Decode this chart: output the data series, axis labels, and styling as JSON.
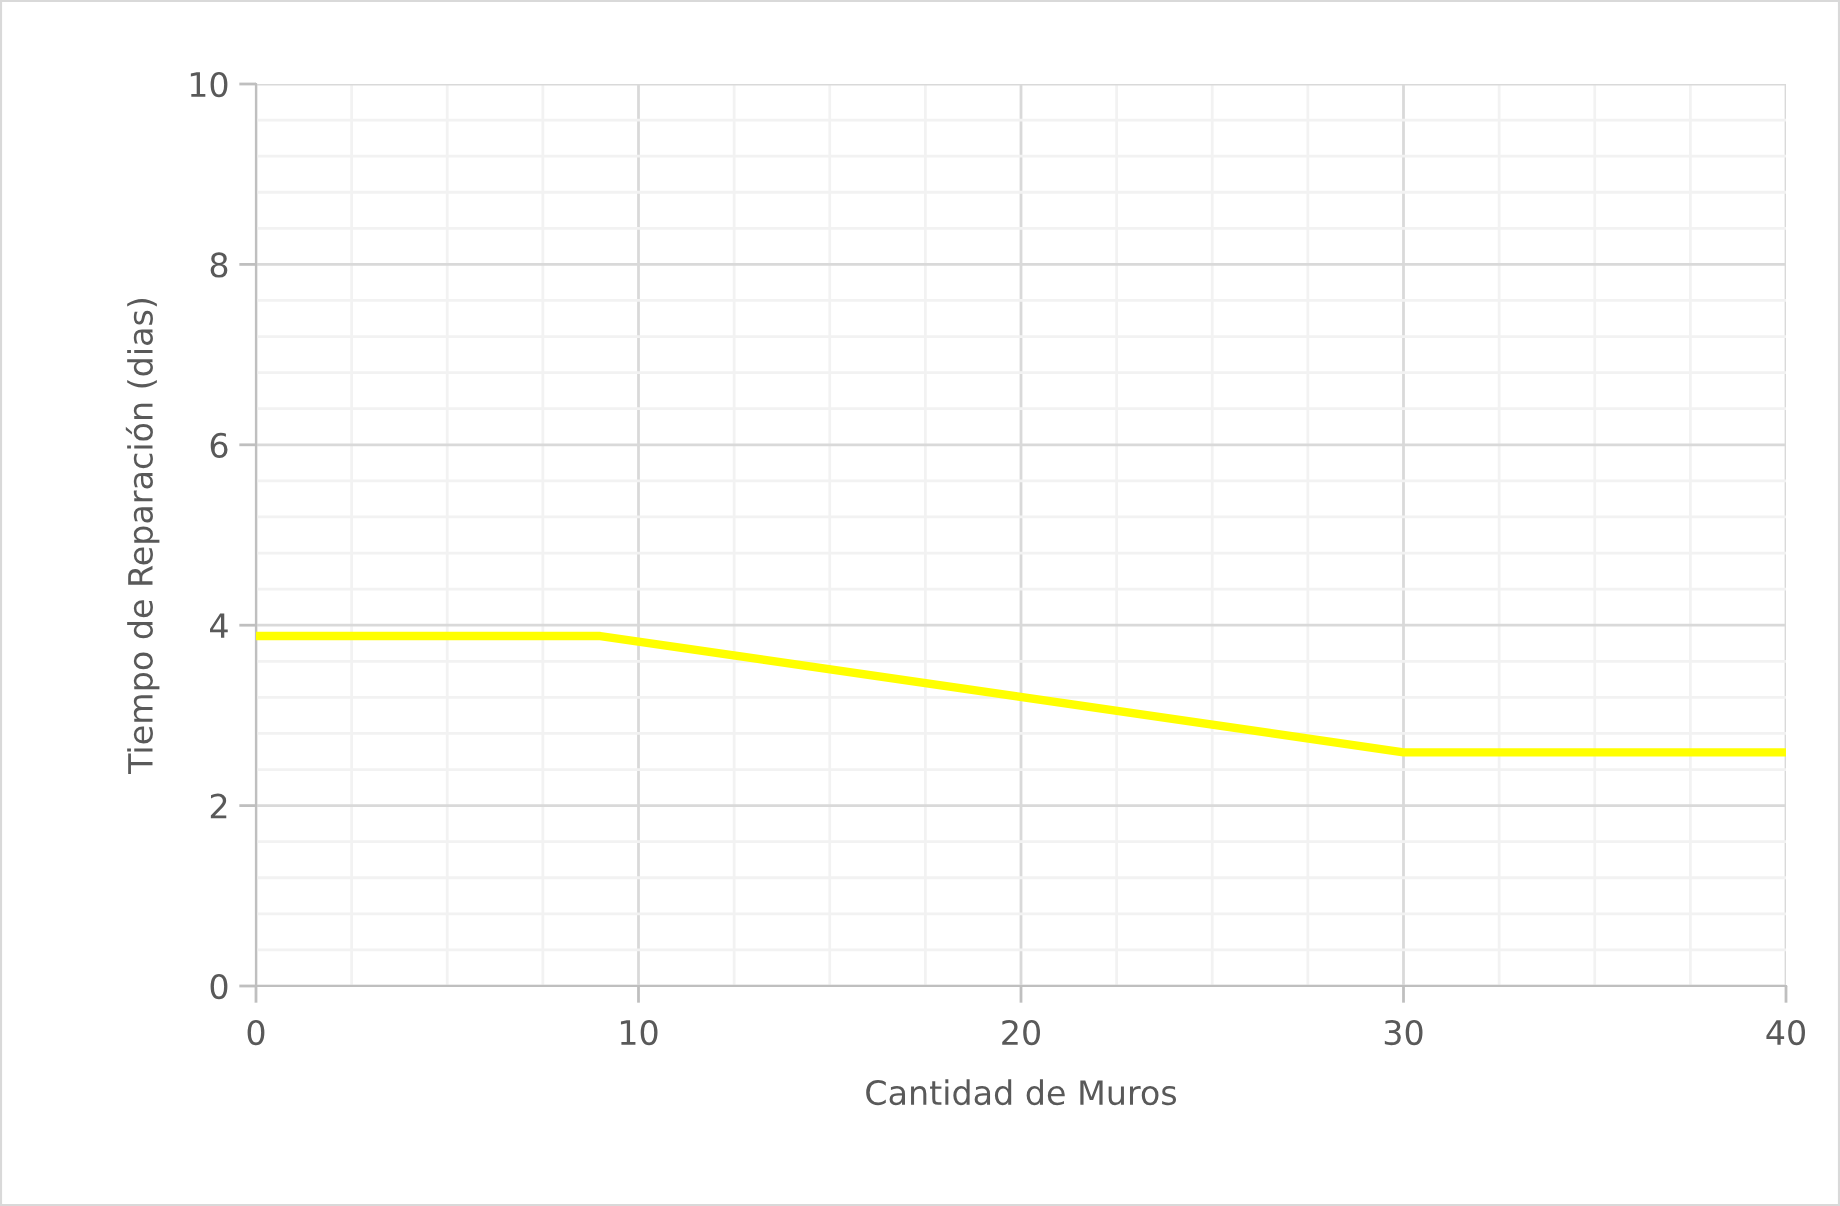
{
  "chart_data": {
    "type": "line",
    "xlabel": "Cantidad de Muros",
    "ylabel": "Tiempo de Reparación (dias)",
    "x": [
      0,
      9,
      30,
      40
    ],
    "series": [
      {
        "color": "#ffff00",
        "values": [
          3.88,
          3.88,
          2.59,
          2.59
        ]
      }
    ],
    "xlim": [
      0,
      40
    ],
    "ylim": [
      0,
      10
    ],
    "xticks": [
      0,
      {
        "value": 2.5,
        "label": null
      },
      {
        "value": 5,
        "label": null
      },
      {
        "value": 7.5,
        "label": null
      },
      10,
      {
        "value": 12.5,
        "label": null
      },
      {
        "value": 15,
        "label": null
      },
      {
        "value": 17.5,
        "label": null
      },
      20,
      {
        "value": 22.5,
        "label": null
      },
      {
        "value": 25,
        "label": null
      },
      {
        "value": 27.5,
        "label": null
      },
      30,
      {
        "value": 32.5,
        "label": null
      },
      {
        "value": 35,
        "label": null
      },
      {
        "value": 37.5,
        "label": null
      },
      40
    ],
    "yticks": [
      0,
      {
        "value": 0.4,
        "label": null
      },
      {
        "value": 0.8,
        "label": null
      },
      {
        "value": 1.2,
        "label": null
      },
      {
        "value": 1.6,
        "label": null
      },
      2,
      {
        "value": 2.4,
        "label": null
      },
      {
        "value": 2.8,
        "label": null
      },
      {
        "value": 3.2,
        "label": null
      },
      {
        "value": 3.6,
        "label": null
      },
      4,
      {
        "value": 4.4,
        "label": null
      },
      {
        "value": 4.8,
        "label": null
      },
      {
        "value": 5.2,
        "label": null
      },
      {
        "value": 5.6,
        "label": null
      },
      6,
      {
        "value": 6.4,
        "label": null
      },
      {
        "value": 6.8,
        "label": null
      },
      {
        "value": 7.2,
        "label": null
      },
      {
        "value": 7.6,
        "label": null
      },
      8,
      {
        "value": 8.4,
        "label": null
      },
      {
        "value": 8.8,
        "label": null
      },
      {
        "value": 9.2,
        "label": null
      },
      {
        "value": 9.6,
        "label": null
      },
      10
    ],
    "grid": true,
    "marker": "none",
    "line_style": "solid"
  }
}
